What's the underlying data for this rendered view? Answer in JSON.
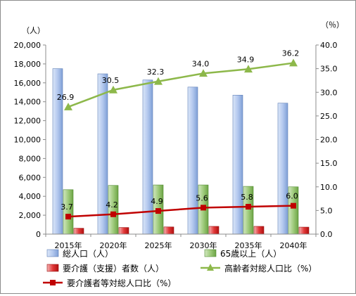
{
  "chart_data": {
    "type": "bar",
    "categories": [
      "2015年",
      "2020年",
      "2025年",
      "2030年",
      "2035年",
      "2040年"
    ],
    "left_axis": {
      "unit": "（人）",
      "ylim": [
        0,
        20000
      ],
      "ticks": [
        "0",
        "2,000",
        "4,000",
        "6,000",
        "8,000",
        "10,000",
        "12,000",
        "14,000",
        "16,000",
        "18,000",
        "20,000"
      ]
    },
    "right_axis": {
      "unit": "（％）",
      "ylim": [
        0,
        40
      ],
      "ticks": [
        "0.0",
        "5.0",
        "10.0",
        "15.0",
        "20.0",
        "25.0",
        "30.0",
        "35.0",
        "40.0"
      ]
    },
    "bar_series": [
      {
        "name": "総人口（人）",
        "values": [
          17500,
          16950,
          16300,
          15550,
          14700,
          13850
        ],
        "color": "#a8c0e8"
      },
      {
        "name": "65歳以上（人）",
        "values": [
          4700,
          5150,
          5200,
          5200,
          5050,
          5000
        ],
        "color": "#9bc47a"
      },
      {
        "name": "要介護（支援）者数（人）",
        "values": [
          620,
          700,
          760,
          820,
          820,
          740
        ],
        "color": "#e03030"
      }
    ],
    "line_series": [
      {
        "name": "高齢者対総人口比（%）",
        "values": [
          26.9,
          30.5,
          32.3,
          34.0,
          34.9,
          36.2
        ],
        "labels": [
          "26.9",
          "30.5",
          "32.3",
          "34.0",
          "34.9",
          "36.2"
        ],
        "color": "#8db84a",
        "marker": "triangle"
      },
      {
        "name": "要介護者等対総人口比（%）",
        "values": [
          3.7,
          4.2,
          4.9,
          5.6,
          5.8,
          6.0
        ],
        "labels": [
          "3.7",
          "4.2",
          "4.9",
          "5.6",
          "5.8",
          "6.0"
        ],
        "color": "#c00000",
        "marker": "square"
      }
    ],
    "grid": false,
    "legend_position": "bottom"
  }
}
